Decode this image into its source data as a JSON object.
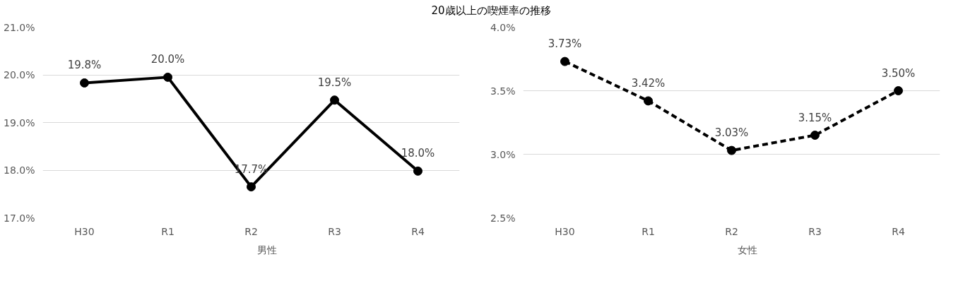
{
  "chart_data": [
    {
      "type": "line",
      "title": "20歳以上の喫煙率の推移",
      "categories": [
        "H30",
        "R1",
        "R2",
        "R3",
        "R4"
      ],
      "series": [
        {
          "name": "男性",
          "color": "#000000",
          "values": [
            19.83,
            19.95,
            17.65,
            19.47,
            17.98
          ],
          "value_labels": [
            "19.8%",
            "20.0%",
            "17.7%",
            "19.5%",
            "18.0%"
          ]
        }
      ],
      "ylim": [
        17.0,
        21.0
      ],
      "yticks": [
        {
          "value": 17.0,
          "label": "17.0%"
        },
        {
          "value": 18.0,
          "label": "18.0%"
        },
        {
          "value": 19.0,
          "label": "19.0%"
        },
        {
          "value": 20.0,
          "label": "20.0%"
        },
        {
          "value": 21.0,
          "label": "21.0%"
        }
      ],
      "grid": "y",
      "legend": "bottom",
      "marker": "circle",
      "line_style": "solid"
    },
    {
      "type": "line",
      "categories": [
        "H30",
        "R1",
        "R2",
        "R3",
        "R4"
      ],
      "series": [
        {
          "name": "女性",
          "color": "#000000",
          "values": [
            3.73,
            3.42,
            3.03,
            3.15,
            3.5
          ],
          "value_labels": [
            "3.73%",
            "3.42%",
            "3.03%",
            "3.15%",
            "3.50%"
          ]
        }
      ],
      "ylim": [
        2.5,
        4.0
      ],
      "yticks": [
        {
          "value": 2.5,
          "label": "2.5%"
        },
        {
          "value": 3.0,
          "label": "3.0%"
        },
        {
          "value": 3.5,
          "label": "3.5%"
        },
        {
          "value": 4.0,
          "label": "4.0%"
        }
      ],
      "grid": "y",
      "legend": "bottom",
      "marker": "circle",
      "line_style": "dashed"
    }
  ]
}
